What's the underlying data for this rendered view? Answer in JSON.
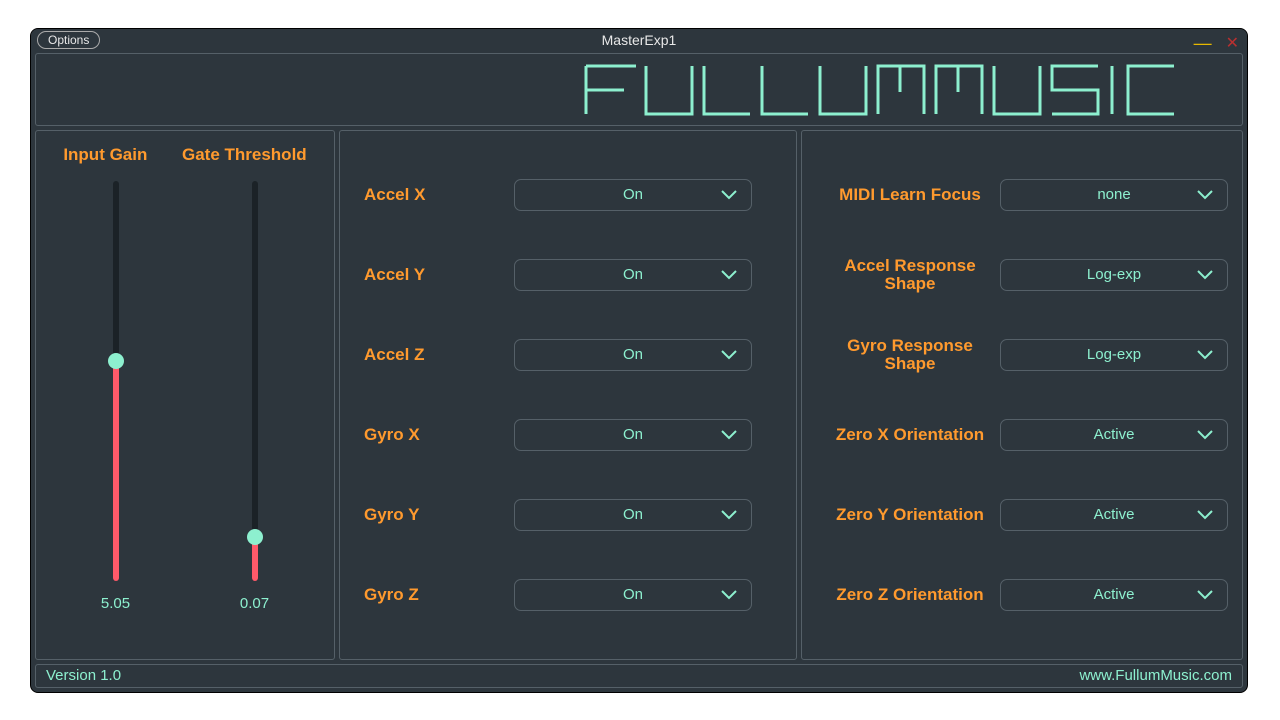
{
  "window": {
    "title": "MasterExp1",
    "options_label": "Options"
  },
  "colors": {
    "bg": "#2d363d",
    "panel_border": "#556068",
    "label_orange": "#ff9a2e",
    "accent_mint": "#8df0cf",
    "slider_fill": "#ff5a6a",
    "track": "#1b2227"
  },
  "logo_text": "FULLUMMUSIC",
  "sliders": {
    "input_gain": {
      "label": "Input Gain",
      "value": "5.05",
      "fill_pct": 55
    },
    "gate_thresh": {
      "label": "Gate Threshold",
      "value": "0.07",
      "fill_pct": 11
    }
  },
  "mid_rows": [
    {
      "label": "Accel X",
      "value": "On"
    },
    {
      "label": "Accel Y",
      "value": "On"
    },
    {
      "label": "Accel Z",
      "value": "On"
    },
    {
      "label": "Gyro X",
      "value": "On"
    },
    {
      "label": "Gyro Y",
      "value": "On"
    },
    {
      "label": "Gyro Z",
      "value": "On"
    }
  ],
  "right_rows": [
    {
      "label": "MIDI Learn Focus",
      "value": "none"
    },
    {
      "label": "Accel Response\nShape",
      "value": "Log-exp"
    },
    {
      "label": "Gyro Response\nShape",
      "value": "Log-exp"
    },
    {
      "label": "Zero X Orientation",
      "value": "Active"
    },
    {
      "label": "Zero Y Orientation",
      "value": "Active"
    },
    {
      "label": "Zero Z Orientation",
      "value": "Active"
    }
  ],
  "footer": {
    "version": "Version 1.0",
    "url": "www.FullumMusic.com"
  }
}
